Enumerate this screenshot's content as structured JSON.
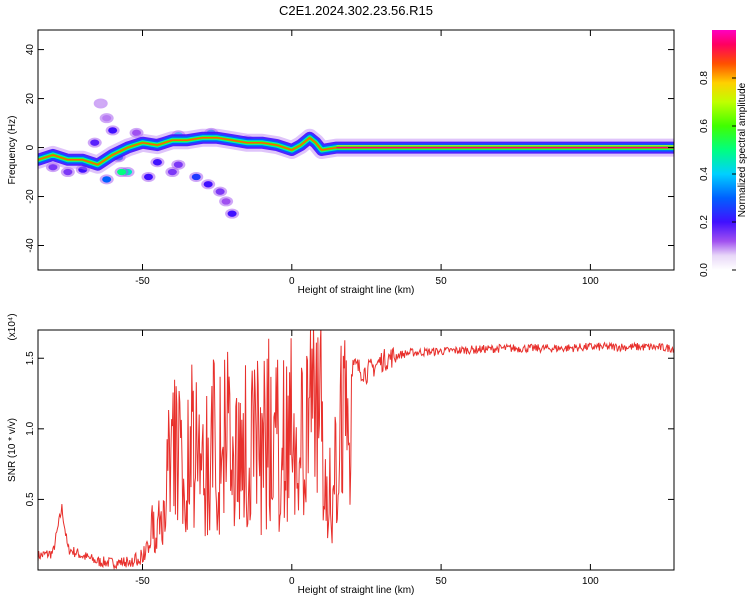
{
  "title": "C2E1.2024.302.23.56.R15",
  "chart_data": [
    {
      "type": "heatmap",
      "title": "C2E1.2024.302.23.56.R15",
      "xlabel": "Height of straight line (km)",
      "ylabel": "Frequency (Hz)",
      "xlim": [
        -85,
        128
      ],
      "ylim": [
        -50,
        48
      ],
      "xticks": [
        -50,
        0,
        50,
        100
      ],
      "yticks": [
        -40,
        -20,
        0,
        20,
        40
      ],
      "colorbar": {
        "label": "Normalized spectral amplitude",
        "range": [
          0,
          1
        ],
        "ticks": [
          0.0,
          0.2,
          0.4,
          0.6,
          0.8
        ],
        "tick_labels": [
          "0.0",
          "0.2",
          "0.4",
          "0.6",
          "0.8"
        ]
      },
      "ridge": [
        {
          "x": -85,
          "y": -5
        },
        {
          "x": -80,
          "y": -3
        },
        {
          "x": -75,
          "y": -5
        },
        {
          "x": -70,
          "y": -5
        },
        {
          "x": -65,
          "y": -7
        },
        {
          "x": -60,
          "y": -3
        },
        {
          "x": -55,
          "y": 0
        },
        {
          "x": -50,
          "y": 2
        },
        {
          "x": -45,
          "y": 1
        },
        {
          "x": -40,
          "y": 3
        },
        {
          "x": -35,
          "y": 3
        },
        {
          "x": -30,
          "y": 4
        },
        {
          "x": -25,
          "y": 4
        },
        {
          "x": -20,
          "y": 3
        },
        {
          "x": -15,
          "y": 2
        },
        {
          "x": -10,
          "y": 2
        },
        {
          "x": -5,
          "y": 1
        },
        {
          "x": 0,
          "y": -1
        },
        {
          "x": 3,
          "y": 1
        },
        {
          "x": 6,
          "y": 4
        },
        {
          "x": 8,
          "y": 2
        },
        {
          "x": 10,
          "y": -1
        },
        {
          "x": 15,
          "y": 0
        },
        {
          "x": 128,
          "y": 0
        }
      ],
      "blobs": [
        {
          "x": -62,
          "y": 12,
          "v": 0.1
        },
        {
          "x": -60,
          "y": 7,
          "v": 0.2
        },
        {
          "x": -58,
          "y": -4,
          "v": 0.3
        },
        {
          "x": -55,
          "y": -10,
          "v": 0.45
        },
        {
          "x": -62,
          "y": -13,
          "v": 0.3
        },
        {
          "x": -70,
          "y": -9,
          "v": 0.2
        },
        {
          "x": -48,
          "y": -12,
          "v": 0.2
        },
        {
          "x": -45,
          "y": -6,
          "v": 0.2
        },
        {
          "x": -40,
          "y": -10,
          "v": 0.15
        },
        {
          "x": -38,
          "y": -7,
          "v": 0.15
        },
        {
          "x": -32,
          "y": -12,
          "v": 0.25
        },
        {
          "x": -28,
          "y": -15,
          "v": 0.2
        },
        {
          "x": -24,
          "y": -18,
          "v": 0.15
        },
        {
          "x": -22,
          "y": -22,
          "v": 0.12
        },
        {
          "x": -20,
          "y": -27,
          "v": 0.2
        },
        {
          "x": -64,
          "y": 18,
          "v": 0.08
        },
        {
          "x": -52,
          "y": 6,
          "v": 0.12
        },
        {
          "x": -66,
          "y": 2,
          "v": 0.18
        },
        {
          "x": -75,
          "y": -10,
          "v": 0.15
        },
        {
          "x": -80,
          "y": -8,
          "v": 0.15
        },
        {
          "x": -44,
          "y": 2,
          "v": 0.35
        },
        {
          "x": -38,
          "y": 5,
          "v": 0.4
        },
        {
          "x": -27,
          "y": 6,
          "v": 0.35
        },
        {
          "x": -15,
          "y": 3,
          "v": 0.3
        },
        {
          "x": -57,
          "y": -10,
          "v": 0.5
        }
      ]
    },
    {
      "type": "line",
      "xlabel": "Height of straight line (km)",
      "ylabel": "SNR (10 * v/v)",
      "multiplier_label": "(x10⁴)",
      "xlim": [
        -85,
        128
      ],
      "ylim": [
        0,
        1.7
      ],
      "xticks": [
        -50,
        0,
        50,
        100
      ],
      "yticks": [
        0.5,
        1.0,
        1.5
      ],
      "ytick_labels": [
        "0.5",
        "1.0",
        "1.5"
      ],
      "color": "#e8302c",
      "series": [
        {
          "x": [
            -85,
            -80,
            -77,
            -75,
            -70,
            -65,
            -60,
            -55,
            -50,
            -47,
            -45,
            -42,
            -40,
            -37,
            -35,
            -32,
            -30,
            -27,
            -25,
            -22,
            -20,
            -17,
            -15,
            -12,
            -10,
            -7,
            -5,
            -2,
            0,
            3,
            5,
            8,
            10,
            12,
            15,
            18,
            20,
            25,
            30,
            35,
            40,
            50,
            60,
            70,
            80,
            90,
            100,
            110,
            120,
            128
          ],
          "y": [
            0.1,
            0.12,
            0.44,
            0.15,
            0.1,
            0.06,
            0.05,
            0.06,
            0.1,
            0.3,
            0.5,
            0.7,
            0.9,
            1.0,
            0.8,
            1.2,
            0.7,
            1.1,
            0.9,
            1.3,
            0.8,
            1.0,
            1.1,
            1.2,
            0.9,
            1.3,
            1.0,
            1.1,
            1.15,
            1.2,
            1.3,
            1.35,
            1.45,
            0.5,
            1.0,
            1.3,
            1.45,
            1.4,
            1.48,
            1.52,
            1.54,
            1.55,
            1.56,
            1.57,
            1.57,
            1.57,
            1.58,
            1.58,
            1.58,
            1.57
          ]
        }
      ]
    }
  ]
}
